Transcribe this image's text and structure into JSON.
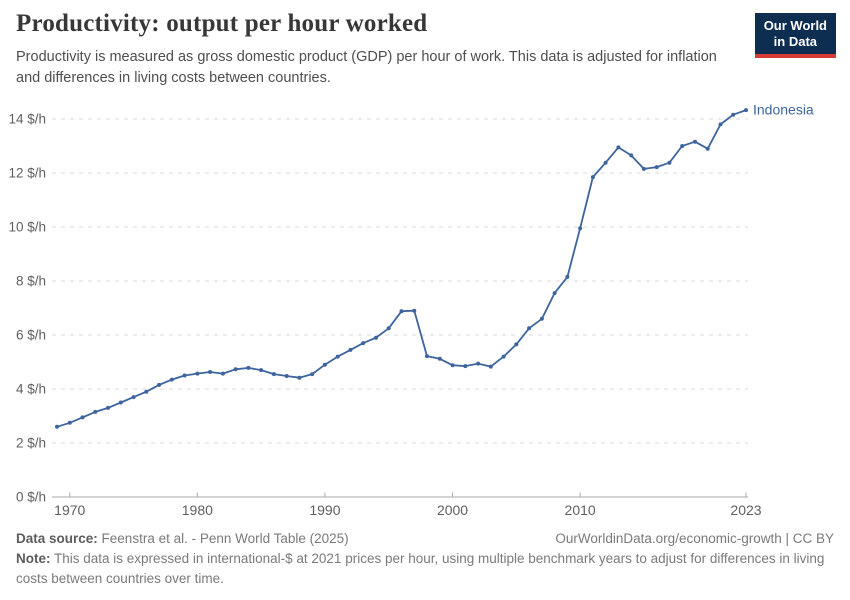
{
  "header": {
    "title": "Productivity: output per hour worked",
    "subtitle": "Productivity is measured as gross domestic product (GDP) per hour of work. This data is adjusted for inflation and differences in living costs between countries.",
    "logo": {
      "line1": "Our World",
      "line2": "in Data"
    }
  },
  "chart_data": {
    "type": "line",
    "title": "Productivity: output per hour worked",
    "entity_label": "Indonesia",
    "unit": "international-$ per hour",
    "xlim": [
      1969,
      2023
    ],
    "ylim": [
      0,
      14.8
    ],
    "grid": "horizontal-dashed",
    "legend_position": "end-of-line",
    "line_color": "#3d649d",
    "x": [
      1969,
      1970,
      1971,
      1972,
      1973,
      1974,
      1975,
      1976,
      1977,
      1978,
      1979,
      1980,
      1981,
      1982,
      1983,
      1984,
      1985,
      1986,
      1987,
      1988,
      1989,
      1990,
      1991,
      1992,
      1993,
      1994,
      1995,
      1996,
      1997,
      1998,
      1999,
      2000,
      2001,
      2002,
      2003,
      2004,
      2005,
      2006,
      2007,
      2008,
      2009,
      2010,
      2011,
      2012,
      2013,
      2014,
      2015,
      2016,
      2017,
      2018,
      2019,
      2020,
      2021,
      2022,
      2023
    ],
    "series": [
      {
        "name": "Indonesia",
        "values": [
          2.6,
          2.75,
          2.95,
          3.15,
          3.3,
          3.5,
          3.7,
          3.9,
          4.15,
          4.35,
          4.5,
          4.57,
          4.63,
          4.57,
          4.73,
          4.78,
          4.7,
          4.55,
          4.48,
          4.42,
          4.55,
          4.9,
          5.2,
          5.45,
          5.7,
          5.9,
          6.25,
          6.88,
          6.9,
          5.22,
          5.12,
          4.88,
          4.85,
          4.94,
          4.83,
          5.2,
          5.65,
          6.25,
          6.6,
          7.55,
          8.15,
          9.95,
          11.85,
          12.38,
          12.95,
          12.65,
          12.15,
          12.22,
          12.38,
          13.0,
          13.16,
          12.9,
          13.8,
          14.16,
          14.33
        ]
      }
    ],
    "y_ticks": [
      0,
      2,
      4,
      6,
      8,
      10,
      12,
      14
    ],
    "y_tick_suffix": " $/h",
    "x_ticks": [
      1970,
      1980,
      1990,
      2000,
      2010,
      2023
    ]
  },
  "footer": {
    "datasource_label": "Data source:",
    "datasource_text": "Feenstra et al. - Penn World Table (2025)",
    "rights": "OurWorldinData.org/economic-growth | CC BY",
    "note_label": "Note:",
    "note_text": "This data is expressed in international-$ at 2021 prices per hour, using multiple benchmark years to adjust for differences in living costs between countries over time."
  }
}
